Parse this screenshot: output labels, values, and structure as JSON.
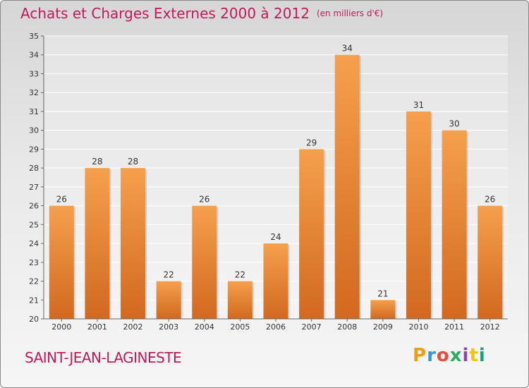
{
  "title": "Achats et Charges Externes 2000 à 2012",
  "unit_label": "(en milliers d'€)",
  "commune": "SAINT-JEAN-LAGINESTE",
  "logo": {
    "text": "Proxiti",
    "colors": [
      "#f39c12",
      "#3498db",
      "#e74c3c",
      "#27ae60",
      "#8e44ad",
      "#f1c40f",
      "#16a085"
    ]
  },
  "colors": {
    "bar_top": "#f5a04c",
    "bar_bottom": "#d2691e",
    "accent": "#c2185b",
    "axis": "#666666"
  },
  "chart_data": {
    "type": "bar",
    "categories": [
      "2000",
      "2001",
      "2002",
      "2003",
      "2004",
      "2005",
      "2006",
      "2007",
      "2008",
      "2009",
      "2010",
      "2011",
      "2012"
    ],
    "values": [
      26,
      28,
      28,
      22,
      26,
      22,
      24,
      29,
      34,
      21,
      31,
      30,
      26
    ],
    "ylim": [
      20,
      35
    ],
    "yticks": [
      20,
      21,
      22,
      23,
      24,
      25,
      26,
      27,
      28,
      29,
      30,
      31,
      32,
      33,
      34,
      35
    ],
    "grid": true,
    "data_labels": true
  }
}
